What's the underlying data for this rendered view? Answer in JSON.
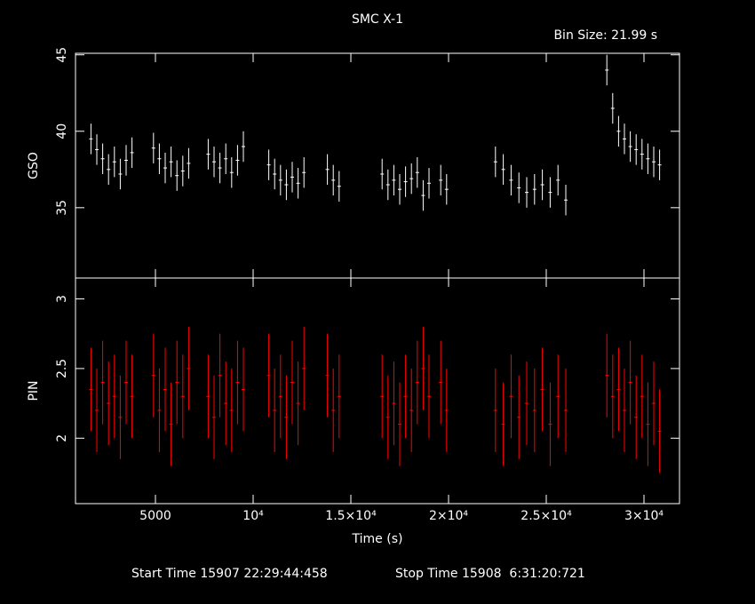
{
  "header": {
    "title": "SMC X-1",
    "bin_size": "Bin Size: 21.99 s",
    "start_time": "Start Time 15907 22:29:44:458",
    "stop_time": "Stop Time 15908  6:31:20:721"
  },
  "chart_data": [
    {
      "type": "errorbar",
      "ylabel": "GSO",
      "color": "#ffffff",
      "x": [
        1700,
        2000,
        2300,
        2600,
        2900,
        3200,
        3500,
        3800,
        4900,
        5200,
        5500,
        5800,
        6100,
        6400,
        6700,
        7700,
        8000,
        8300,
        8600,
        8900,
        9200,
        9500,
        10800,
        11100,
        11400,
        11700,
        12000,
        12300,
        12600,
        13800,
        14100,
        14400,
        16600,
        16900,
        17200,
        17500,
        17800,
        18100,
        18400,
        18700,
        19000,
        19600,
        19900,
        22400,
        22800,
        23200,
        23600,
        24000,
        24400,
        24800,
        25200,
        25600,
        26000,
        28100,
        28400,
        28700,
        29000,
        29300,
        29600,
        29900,
        30200,
        30500,
        30800
      ],
      "values": [
        39.5,
        38.8,
        38.2,
        37.5,
        38.0,
        37.2,
        38.1,
        38.6,
        38.9,
        38.2,
        37.6,
        38.0,
        37.1,
        37.4,
        37.9,
        38.5,
        38.0,
        37.6,
        38.2,
        37.3,
        38.1,
        39.0,
        37.8,
        37.2,
        36.8,
        36.5,
        37.0,
        36.6,
        37.3,
        37.5,
        36.8,
        36.4,
        37.2,
        36.5,
        36.8,
        36.2,
        36.7,
        36.9,
        37.3,
        35.8,
        36.6,
        36.8,
        36.2,
        38.0,
        37.5,
        36.8,
        36.3,
        36.0,
        36.2,
        36.5,
        36.0,
        36.8,
        35.5,
        44.0,
        41.5,
        40.0,
        39.5,
        39.0,
        38.8,
        38.5,
        38.2,
        38.0,
        37.8
      ],
      "yerr": 1.0,
      "xlim": [
        909,
        31818
      ],
      "ylim": [
        30.4,
        45.1
      ],
      "xticks": [
        5000,
        10000,
        15000,
        20000,
        25000,
        30000
      ],
      "yticks": [
        35,
        40,
        45
      ]
    },
    {
      "type": "errorbar",
      "ylabel": "PIN",
      "xlabel": "Time (s)",
      "color": "#ff0000",
      "x": [
        1700,
        2000,
        2300,
        2600,
        2900,
        3200,
        3500,
        3800,
        4900,
        5200,
        5500,
        5800,
        6100,
        6400,
        6700,
        7700,
        8000,
        8300,
        8600,
        8900,
        9200,
        9500,
        10800,
        11100,
        11400,
        11700,
        12000,
        12300,
        12600,
        13800,
        14100,
        14400,
        16600,
        16900,
        17200,
        17500,
        17800,
        18100,
        18400,
        18700,
        19000,
        19600,
        19900,
        22400,
        22800,
        23200,
        23600,
        24000,
        24400,
        24800,
        25200,
        25600,
        26000,
        28100,
        28400,
        28700,
        29000,
        29300,
        29600,
        29900,
        30200,
        30500,
        30800
      ],
      "values": [
        2.35,
        2.2,
        2.4,
        2.25,
        2.3,
        2.15,
        2.4,
        2.3,
        2.45,
        2.2,
        2.35,
        2.1,
        2.4,
        2.3,
        2.5,
        2.3,
        2.15,
        2.45,
        2.25,
        2.2,
        2.4,
        2.35,
        2.45,
        2.2,
        2.3,
        2.15,
        2.4,
        2.25,
        2.5,
        2.45,
        2.2,
        2.3,
        2.3,
        2.15,
        2.25,
        2.1,
        2.3,
        2.2,
        2.4,
        2.5,
        2.3,
        2.4,
        2.2,
        2.2,
        2.1,
        2.3,
        2.15,
        2.25,
        2.2,
        2.35,
        2.1,
        2.3,
        2.2,
        2.45,
        2.3,
        2.35,
        2.2,
        2.4,
        2.15,
        2.3,
        2.1,
        2.25,
        2.05
      ],
      "yerr": 0.3,
      "xlim": [
        909,
        31818
      ],
      "ylim": [
        1.53,
        3.15
      ],
      "xticks": [
        5000,
        {
          "value": 10000,
          "label": "10⁴"
        },
        {
          "value": 15000,
          "label": "1.5×10⁴"
        },
        {
          "value": 20000,
          "label": "2×10⁴"
        },
        {
          "value": 25000,
          "label": "2.5×10⁴"
        },
        {
          "value": 30000,
          "label": "3×10⁴"
        }
      ],
      "yticks": [
        2,
        2.5,
        3
      ]
    }
  ]
}
